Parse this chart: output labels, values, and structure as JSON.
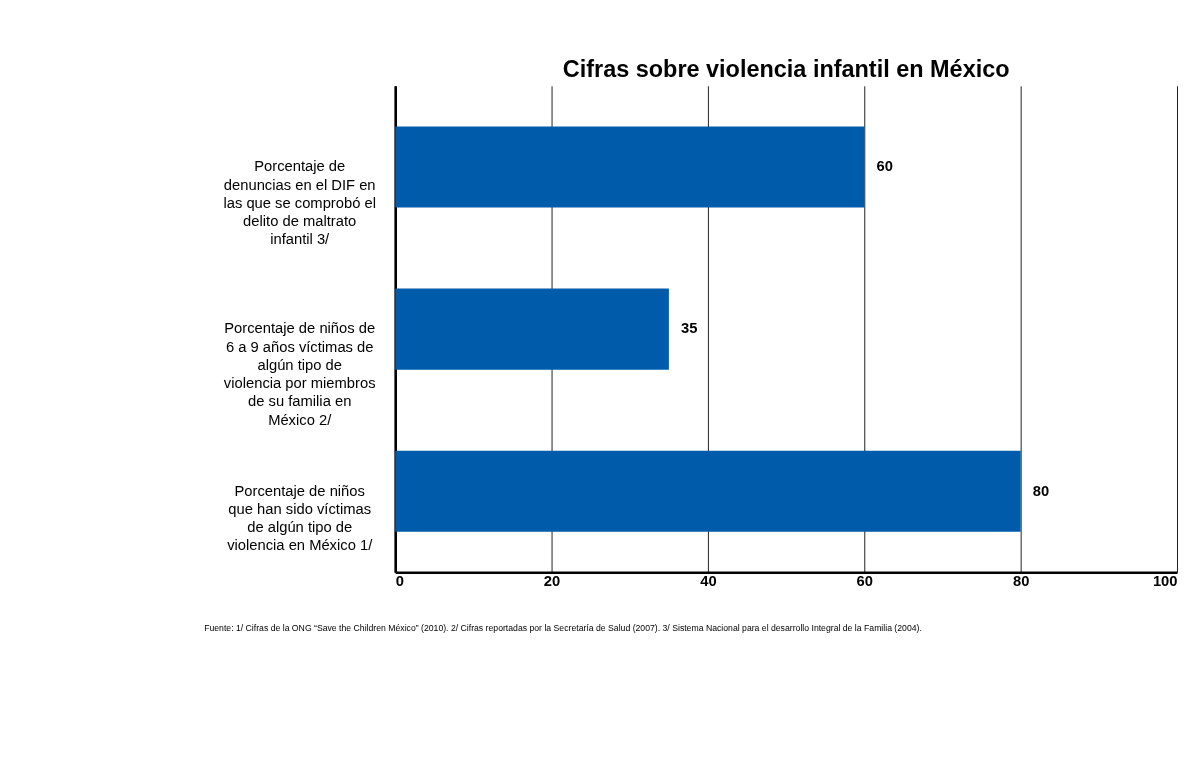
{
  "chart_data": {
    "type": "bar",
    "orientation": "horizontal",
    "title": "Cifras sobre violencia infantil en México",
    "categories": [
      "Porcentaje de denuncias en el DIF en las que se comprobó el delito de maltrato infantil 3/",
      "Porcentaje de niños de 6 a 9 años víctimas de algún tipo de violencia por miembros de su familia en México 2/",
      "Porcentaje de niños que han sido víctimas de algún tipo de violencia en México 1/"
    ],
    "values": [
      60,
      35,
      80
    ],
    "color": "#005baa",
    "data_labels": true,
    "xlim": [
      0,
      100
    ],
    "xticks": [
      0,
      20,
      40,
      60,
      80,
      100
    ],
    "grid": "x",
    "annotations": [
      "Fuente: 1/ Cifras de la ONG “Save the Children México” (2010). 2/ Cifras reportadas por la Secretaría de Salud (2007). 3/ Sistema Nacional para el desarrollo Integral de la Familia (2004)."
    ]
  }
}
